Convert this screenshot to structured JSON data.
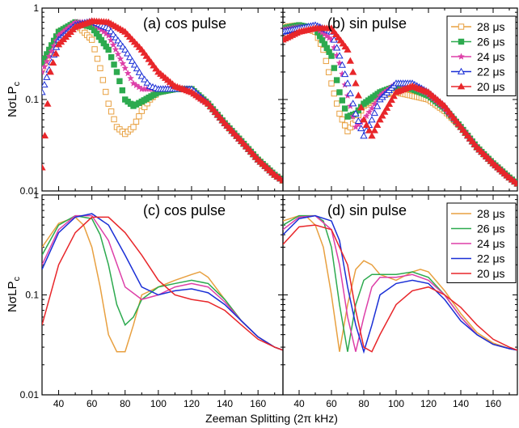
{
  "figure": {
    "xlabel": "Zeeman Splitting (2π kHz)",
    "ylabel_main": "NσLP",
    "ylabel_sub": "c"
  },
  "chart_data": [
    {
      "panel": "a",
      "type": "scatter",
      "title": "(a) cos pulse",
      "xlim": [
        30,
        175
      ],
      "ylim": [
        0.01,
        1
      ],
      "yscale": "log",
      "series_ref": "markers",
      "series": [
        {
          "name": "28 μs",
          "color": "#E8A040",
          "marker": "open-square",
          "x": [
            30,
            40,
            50,
            60,
            65,
            70,
            75,
            80,
            85,
            90,
            95,
            100,
            110,
            120,
            130,
            140,
            150,
            160,
            170,
            175
          ],
          "values": [
            0.22,
            0.55,
            0.68,
            0.45,
            0.22,
            0.09,
            0.05,
            0.042,
            0.05,
            0.075,
            0.1,
            0.12,
            0.13,
            0.13,
            0.09,
            0.055,
            0.035,
            0.022,
            0.015,
            0.013
          ]
        },
        {
          "name": "26 μs",
          "color": "#2DAA4F",
          "marker": "filled-square",
          "x": [
            30,
            40,
            50,
            60,
            70,
            75,
            80,
            85,
            90,
            100,
            110,
            120,
            130,
            140,
            150,
            160,
            170,
            175
          ],
          "values": [
            0.25,
            0.55,
            0.7,
            0.62,
            0.35,
            0.2,
            0.1,
            0.085,
            0.095,
            0.12,
            0.13,
            0.13,
            0.09,
            0.055,
            0.035,
            0.022,
            0.015,
            0.013
          ]
        },
        {
          "name": "24 μs",
          "color": "#DD3FA8",
          "marker": "star",
          "x": [
            30,
            40,
            50,
            60,
            70,
            80,
            85,
            90,
            100,
            110,
            120,
            130,
            140,
            150,
            160,
            170,
            175
          ],
          "values": [
            0.2,
            0.5,
            0.7,
            0.7,
            0.5,
            0.22,
            0.15,
            0.13,
            0.13,
            0.135,
            0.13,
            0.09,
            0.055,
            0.035,
            0.022,
            0.015,
            0.013
          ]
        },
        {
          "name": "22 μs",
          "color": "#1A2FD6",
          "marker": "open-triangle",
          "x": [
            30,
            40,
            50,
            60,
            70,
            80,
            90,
            95,
            100,
            110,
            120,
            130,
            140,
            150,
            160,
            170,
            175
          ],
          "values": [
            0.12,
            0.45,
            0.65,
            0.72,
            0.6,
            0.35,
            0.18,
            0.14,
            0.13,
            0.13,
            0.13,
            0.09,
            0.055,
            0.035,
            0.022,
            0.015,
            0.013
          ]
        },
        {
          "name": "20 μs",
          "color": "#E8262A",
          "marker": "filled-triangle",
          "x": [
            30,
            35,
            40,
            50,
            60,
            70,
            80,
            90,
            100,
            110,
            120,
            130,
            140,
            150,
            160,
            170,
            175
          ],
          "values": [
            0.018,
            0.2,
            0.4,
            0.62,
            0.72,
            0.7,
            0.55,
            0.35,
            0.2,
            0.14,
            0.12,
            0.09,
            0.055,
            0.035,
            0.022,
            0.015,
            0.013
          ]
        }
      ]
    },
    {
      "panel": "b",
      "type": "scatter",
      "title": "(b) sin pulse",
      "xlim": [
        30,
        175
      ],
      "ylim": [
        0.01,
        1
      ],
      "yscale": "log",
      "legend_position": "top-right",
      "series": [
        {
          "name": "28 μs",
          "color": "#E8A040",
          "marker": "open-square",
          "x": [
            30,
            40,
            50,
            55,
            60,
            65,
            70,
            75,
            80,
            90,
            100,
            110,
            120,
            130,
            140,
            150,
            160,
            170,
            175
          ],
          "values": [
            0.62,
            0.65,
            0.55,
            0.35,
            0.15,
            0.07,
            0.045,
            0.06,
            0.085,
            0.11,
            0.12,
            0.11,
            0.1,
            0.075,
            0.05,
            0.03,
            0.02,
            0.014,
            0.012
          ]
        },
        {
          "name": "26 μs",
          "color": "#2DAA4F",
          "marker": "filled-square",
          "x": [
            30,
            40,
            50,
            60,
            65,
            70,
            75,
            80,
            90,
            100,
            110,
            120,
            130,
            140,
            150,
            160,
            170,
            175
          ],
          "values": [
            0.6,
            0.65,
            0.6,
            0.3,
            0.12,
            0.065,
            0.07,
            0.09,
            0.12,
            0.14,
            0.13,
            0.11,
            0.08,
            0.05,
            0.03,
            0.02,
            0.014,
            0.012
          ]
        },
        {
          "name": "24 μs",
          "color": "#DD3FA8",
          "marker": "star",
          "x": [
            30,
            40,
            50,
            60,
            65,
            70,
            75,
            80,
            85,
            90,
            100,
            110,
            120,
            130,
            140,
            150,
            160,
            170,
            175
          ],
          "values": [
            0.58,
            0.62,
            0.62,
            0.45,
            0.25,
            0.11,
            0.05,
            0.06,
            0.08,
            0.11,
            0.15,
            0.14,
            0.115,
            0.08,
            0.05,
            0.03,
            0.02,
            0.014,
            0.012
          ]
        },
        {
          "name": "22 μs",
          "color": "#1A2FD6",
          "marker": "open-triangle",
          "x": [
            30,
            40,
            50,
            60,
            65,
            70,
            75,
            80,
            85,
            90,
            100,
            110,
            120,
            130,
            140,
            150,
            160,
            170,
            175
          ],
          "values": [
            0.55,
            0.6,
            0.65,
            0.55,
            0.3,
            0.15,
            0.07,
            0.04,
            0.06,
            0.1,
            0.15,
            0.15,
            0.12,
            0.085,
            0.05,
            0.03,
            0.02,
            0.014,
            0.012
          ]
        },
        {
          "name": "20 μs",
          "color": "#E8262A",
          "marker": "filled-triangle",
          "x": [
            30,
            40,
            50,
            60,
            70,
            75,
            80,
            85,
            90,
            100,
            110,
            120,
            130,
            140,
            150,
            160,
            170,
            175
          ],
          "values": [
            0.45,
            0.55,
            0.6,
            0.6,
            0.35,
            0.15,
            0.06,
            0.04,
            0.06,
            0.12,
            0.14,
            0.12,
            0.085,
            0.05,
            0.03,
            0.02,
            0.014,
            0.012
          ]
        }
      ]
    },
    {
      "panel": "c",
      "type": "line",
      "title": "(c) cos pulse",
      "xlim": [
        30,
        175
      ],
      "ylim": [
        0.01,
        1
      ],
      "yscale": "log",
      "series": [
        {
          "name": "28 μs",
          "color": "#E8A040",
          "x": [
            30,
            40,
            50,
            55,
            60,
            65,
            70,
            75,
            80,
            85,
            90,
            100,
            110,
            120,
            125,
            130,
            140,
            150,
            160,
            170,
            175
          ],
          "values": [
            0.3,
            0.52,
            0.6,
            0.5,
            0.3,
            0.12,
            0.04,
            0.027,
            0.027,
            0.05,
            0.1,
            0.12,
            0.14,
            0.16,
            0.17,
            0.15,
            0.09,
            0.055,
            0.038,
            0.03,
            0.028
          ]
        },
        {
          "name": "26 μs",
          "color": "#2DAA4F",
          "x": [
            30,
            40,
            50,
            60,
            65,
            70,
            75,
            80,
            85,
            90,
            100,
            110,
            120,
            130,
            140,
            150,
            160,
            170,
            175
          ],
          "values": [
            0.25,
            0.5,
            0.62,
            0.58,
            0.4,
            0.2,
            0.08,
            0.05,
            0.06,
            0.09,
            0.12,
            0.13,
            0.14,
            0.13,
            0.09,
            0.055,
            0.038,
            0.03,
            0.028
          ]
        },
        {
          "name": "24 μs",
          "color": "#DD3FA8",
          "x": [
            30,
            40,
            50,
            60,
            70,
            80,
            90,
            100,
            110,
            120,
            130,
            140,
            150,
            160,
            170,
            175
          ],
          "values": [
            0.2,
            0.45,
            0.62,
            0.62,
            0.35,
            0.12,
            0.09,
            0.1,
            0.12,
            0.13,
            0.12,
            0.085,
            0.055,
            0.038,
            0.03,
            0.028
          ]
        },
        {
          "name": "22 μs",
          "color": "#1A2FD6",
          "x": [
            30,
            40,
            50,
            60,
            70,
            80,
            90,
            100,
            110,
            120,
            130,
            140,
            150,
            160,
            170,
            175
          ],
          "values": [
            0.18,
            0.42,
            0.6,
            0.65,
            0.5,
            0.25,
            0.12,
            0.1,
            0.11,
            0.115,
            0.105,
            0.08,
            0.055,
            0.038,
            0.03,
            0.028
          ]
        },
        {
          "name": "20 μs",
          "color": "#E8262A",
          "x": [
            30,
            40,
            50,
            60,
            70,
            80,
            90,
            100,
            110,
            120,
            130,
            140,
            150,
            160,
            170,
            175
          ],
          "values": [
            0.05,
            0.2,
            0.42,
            0.6,
            0.6,
            0.42,
            0.25,
            0.14,
            0.1,
            0.09,
            0.085,
            0.07,
            0.05,
            0.036,
            0.03,
            0.028
          ]
        }
      ]
    },
    {
      "panel": "d",
      "type": "line",
      "title": "(d) sin pulse",
      "xlim": [
        30,
        175
      ],
      "ylim": [
        0.01,
        1
      ],
      "yscale": "log",
      "legend_position": "top-right",
      "series": [
        {
          "name": "28 μs",
          "color": "#E8A040",
          "x": [
            30,
            40,
            45,
            50,
            55,
            60,
            65,
            70,
            75,
            80,
            85,
            90,
            100,
            110,
            115,
            120,
            130,
            140,
            150,
            160,
            170,
            175
          ],
          "values": [
            0.55,
            0.62,
            0.6,
            0.5,
            0.3,
            0.1,
            0.027,
            0.08,
            0.18,
            0.22,
            0.2,
            0.16,
            0.14,
            0.17,
            0.18,
            0.17,
            0.11,
            0.065,
            0.042,
            0.033,
            0.029,
            0.028
          ]
        },
        {
          "name": "26 μs",
          "color": "#2DAA4F",
          "x": [
            30,
            40,
            50,
            55,
            60,
            65,
            70,
            75,
            80,
            85,
            90,
            100,
            110,
            120,
            130,
            140,
            150,
            160,
            170,
            175
          ],
          "values": [
            0.5,
            0.62,
            0.62,
            0.55,
            0.3,
            0.08,
            0.027,
            0.08,
            0.14,
            0.16,
            0.16,
            0.16,
            0.17,
            0.15,
            0.1,
            0.06,
            0.04,
            0.032,
            0.029,
            0.028
          ]
        },
        {
          "name": "24 μs",
          "color": "#DD3FA8",
          "x": [
            30,
            40,
            50,
            60,
            65,
            70,
            75,
            80,
            85,
            90,
            100,
            110,
            120,
            130,
            140,
            150,
            160,
            170,
            175
          ],
          "values": [
            0.45,
            0.6,
            0.62,
            0.45,
            0.2,
            0.06,
            0.027,
            0.06,
            0.12,
            0.15,
            0.15,
            0.16,
            0.14,
            0.1,
            0.06,
            0.04,
            0.032,
            0.029,
            0.028
          ]
        },
        {
          "name": "22 μs",
          "color": "#1A2FD6",
          "x": [
            30,
            40,
            50,
            60,
            65,
            70,
            75,
            80,
            85,
            90,
            100,
            110,
            120,
            130,
            140,
            150,
            160,
            170,
            175
          ],
          "values": [
            0.4,
            0.58,
            0.62,
            0.55,
            0.35,
            0.12,
            0.05,
            0.027,
            0.05,
            0.1,
            0.13,
            0.14,
            0.13,
            0.09,
            0.055,
            0.04,
            0.032,
            0.029,
            0.028
          ]
        },
        {
          "name": "20 μs",
          "color": "#E8262A",
          "x": [
            30,
            40,
            50,
            60,
            70,
            75,
            80,
            85,
            90,
            100,
            110,
            120,
            130,
            140,
            150,
            160,
            170,
            175
          ],
          "values": [
            0.32,
            0.48,
            0.5,
            0.45,
            0.2,
            0.07,
            0.03,
            0.027,
            0.04,
            0.08,
            0.11,
            0.12,
            0.1,
            0.075,
            0.05,
            0.036,
            0.03,
            0.028
          ]
        }
      ]
    }
  ],
  "axes": {
    "xticks": [
      40,
      60,
      80,
      100,
      120,
      140,
      160
    ],
    "xtick_labels": [
      "40",
      "60",
      "80",
      "100",
      "120",
      "140",
      "160"
    ],
    "yticks": [
      0.01,
      0.1,
      1
    ],
    "ytick_labels": [
      "0.01",
      "0.1",
      "1"
    ]
  }
}
